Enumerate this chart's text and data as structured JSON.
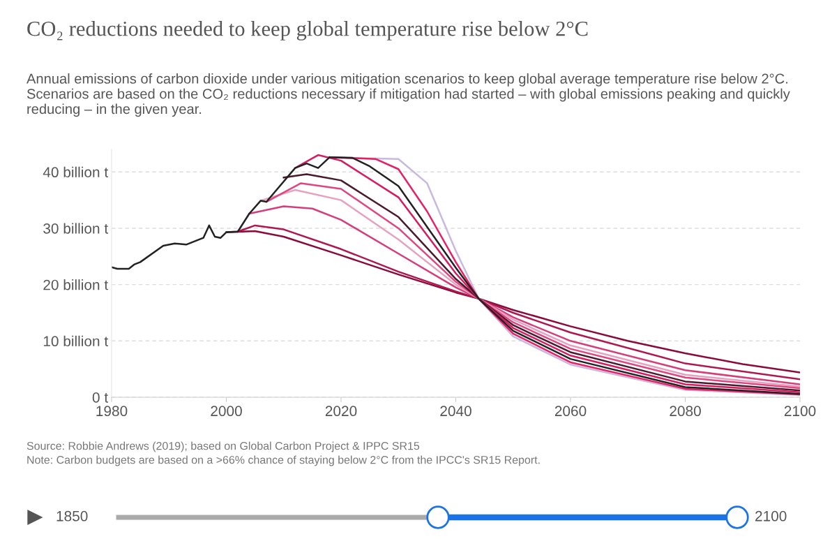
{
  "chart_data": {
    "type": "line",
    "title": "CO₂ reductions needed to keep global temperature rise below 2°C",
    "subtitle": "Annual emissions of carbon dioxide under various mitigation scenarios to keep global average temperature rise below 2°C. Scenarios are based on the CO₂ reductions necessary if mitigation had started – with global emissions peaking and quickly reducing – in the given year.",
    "annotations": [
      "Source: Robbie Andrews (2019); based on Global Carbon Project & IPPC SR15",
      "Note: Carbon budgets are based on a >66% chance of staying below 2°C from the IPCC's SR15 Report.",
      "1850",
      "2100"
    ],
    "xlim": [
      1980,
      2100
    ],
    "xticks": [
      1980,
      2000,
      2020,
      2040,
      2060,
      2080,
      2100
    ],
    "ylim": [
      0,
      44
    ],
    "yticks": [
      {
        "value": 0,
        "label": "0 t"
      },
      {
        "value": 10,
        "label": "10 billion t"
      },
      {
        "value": 20,
        "label": "20 billion t"
      },
      {
        "value": 30,
        "label": "30 billion t"
      },
      {
        "value": 40,
        "label": "40 billion t"
      }
    ],
    "grid": "y",
    "legend": false,
    "line_style": "solid",
    "marker": "none",
    "series": [
      {
        "color": "#8b0a3a",
        "x": [
          2000,
          2005,
          2010,
          2020,
          2030,
          2040,
          2044,
          2050,
          2060,
          2070,
          2080,
          2090,
          2100
        ],
        "values": [
          29.3,
          29.5,
          28.5,
          25.2,
          21.8,
          18.6,
          17.5,
          15.5,
          12.6,
          10.0,
          7.8,
          5.9,
          4.4
        ]
      },
      {
        "color": "#b0174f",
        "x": [
          2002,
          2005,
          2010,
          2020,
          2030,
          2040,
          2044,
          2050,
          2060,
          2080,
          2100
        ],
        "values": [
          29.4,
          30.5,
          29.8,
          26.3,
          22.3,
          18.8,
          17.5,
          15.0,
          11.5,
          6.0,
          3.2
        ]
      },
      {
        "color": "#d63d7a",
        "x": [
          2004,
          2010,
          2015,
          2020,
          2030,
          2040,
          2044,
          2050,
          2060,
          2080,
          2100
        ],
        "values": [
          32.6,
          33.9,
          33.5,
          31.5,
          25.5,
          19.5,
          17.5,
          14.2,
          10.0,
          4.8,
          2.3
        ]
      },
      {
        "color": "#e8a0c0",
        "x": [
          2006,
          2012,
          2020,
          2030,
          2040,
          2044,
          2050,
          2060,
          2080,
          2100
        ],
        "values": [
          34.9,
          36.8,
          35.0,
          28.0,
          20.0,
          17.5,
          13.8,
          9.2,
          4.0,
          1.9
        ]
      },
      {
        "color": "#e0457f",
        "x": [
          2007,
          2013,
          2020,
          2030,
          2040,
          2044,
          2050,
          2060,
          2080,
          2100
        ],
        "values": [
          34.7,
          38.0,
          37.0,
          30.0,
          20.5,
          17.5,
          13.3,
          8.6,
          3.5,
          1.6
        ]
      },
      {
        "color": "#4a1a2c",
        "x": [
          2010,
          2014,
          2020,
          2030,
          2040,
          2044,
          2050,
          2060,
          2080,
          2100
        ],
        "values": [
          39.0,
          39.6,
          38.5,
          32.0,
          21.0,
          17.5,
          12.8,
          8.0,
          2.8,
          1.2
        ]
      },
      {
        "color": "#d81b60",
        "x": [
          2012,
          2016,
          2020,
          2030,
          2040,
          2044,
          2050,
          2060,
          2080,
          2100
        ],
        "values": [
          40.7,
          43.0,
          42.0,
          35.5,
          22.0,
          17.5,
          12.3,
          7.4,
          2.3,
          0.9
        ]
      },
      {
        "color": "#c9b8e0",
        "x": [
          2018,
          2030,
          2035,
          2040,
          2044,
          2050,
          2060,
          2080,
          2100
        ],
        "values": [
          42.6,
          42.3,
          38.0,
          26.0,
          17.5,
          10.8,
          5.8,
          1.3,
          0.4
        ]
      },
      {
        "color": "#e91e63",
        "x": [
          2018,
          2026,
          2030,
          2035,
          2040,
          2044,
          2050,
          2060,
          2080,
          2100
        ],
        "values": [
          42.6,
          42.3,
          40.5,
          33.0,
          24.0,
          17.5,
          11.3,
          6.2,
          1.5,
          0.5
        ]
      },
      {
        "color": "#222222",
        "x": [
          2018,
          2022,
          2025,
          2030,
          2040,
          2044,
          2050,
          2060,
          2080,
          2100
        ],
        "values": [
          42.6,
          42.5,
          41.0,
          37.5,
          23.0,
          17.5,
          11.8,
          6.8,
          1.8,
          0.6
        ]
      },
      {
        "color": "#222222",
        "x": [
          1980,
          1981,
          1983,
          1984,
          1985,
          1989,
          1991,
          1993,
          1996,
          1997,
          1998,
          1999,
          2000,
          2002,
          2004,
          2006,
          2007,
          2012,
          2014,
          2016,
          2018
        ],
        "values": [
          23.1,
          22.8,
          22.8,
          23.6,
          24.0,
          26.9,
          27.3,
          27.1,
          28.3,
          30.5,
          28.5,
          28.3,
          29.3,
          29.4,
          32.6,
          34.9,
          34.7,
          40.7,
          41.5,
          40.7,
          42.6
        ]
      }
    ]
  }
}
